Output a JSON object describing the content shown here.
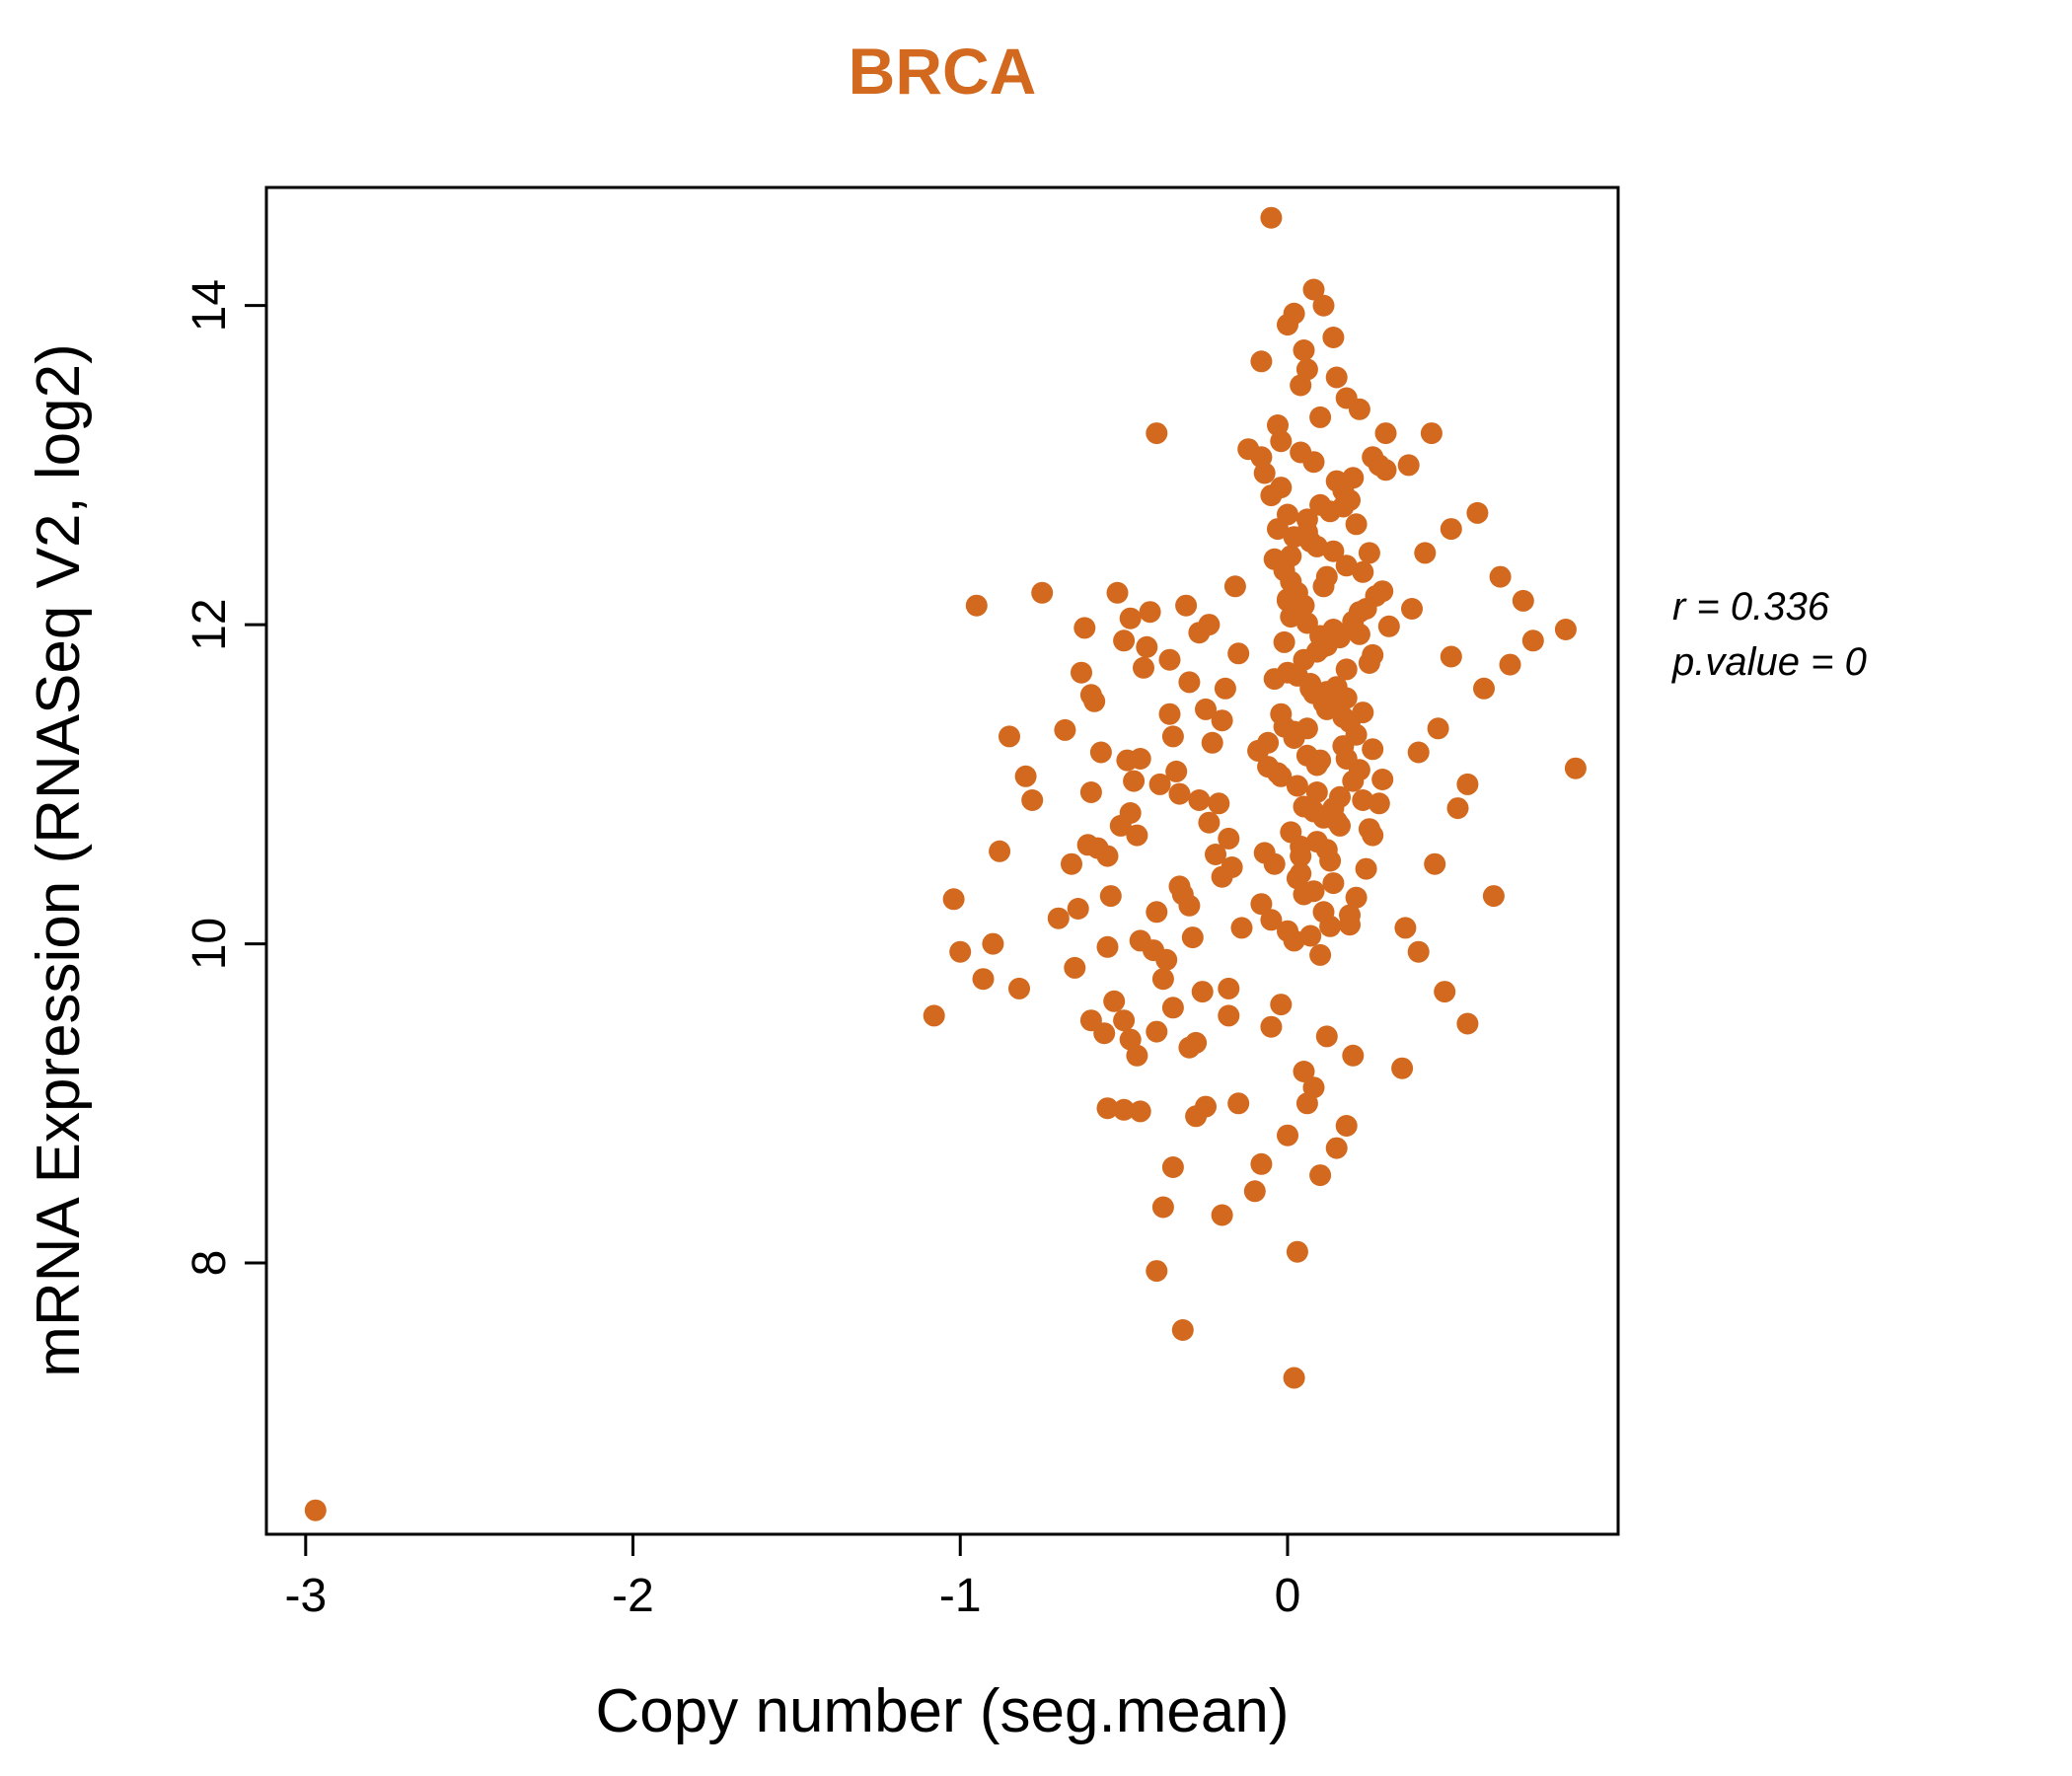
{
  "colors": {
    "accent": "#d2691e",
    "point": "#d2691e",
    "axis": "#000000"
  },
  "chart_data": {
    "type": "scatter",
    "title": "BRCA",
    "xlabel": "Copy number (seg.mean)",
    "ylabel": "mRNA Expression (RNASeq V2, log2)",
    "annotation": {
      "r_label": "r = 0.336",
      "p_label": "p.value = 0"
    },
    "r": 0.336,
    "p_value": 0,
    "x_ticks": [
      -3,
      -2,
      -1,
      0
    ],
    "y_ticks": [
      8,
      10,
      12,
      14
    ],
    "xlim": [
      -3.12,
      1.01
    ],
    "ylim": [
      6.3,
      14.74
    ],
    "grid": false,
    "legend": "none",
    "points": [
      [
        0.02,
        10.02
      ],
      [
        0.08,
        10.33
      ],
      [
        -0.04,
        10.5
      ],
      [
        0.12,
        10.59
      ],
      [
        0.05,
        10.86
      ],
      [
        0.17,
        11.24
      ],
      [
        -0.01,
        11.36
      ],
      [
        0.1,
        11.85
      ],
      [
        0.22,
        12.08
      ],
      [
        0.0,
        12.15
      ],
      [
        0.14,
        12.46
      ],
      [
        0.06,
        12.58
      ],
      [
        -0.07,
        12.95
      ],
      [
        0.19,
        10.18
      ],
      [
        0.03,
        10.41
      ],
      [
        0.25,
        10.72
      ],
      [
        0.09,
        10.95
      ],
      [
        -0.03,
        11.07
      ],
      [
        0.11,
        11.51
      ],
      [
        0.07,
        11.63
      ],
      [
        0.16,
        11.92
      ],
      [
        0.01,
        12.27
      ],
      [
        0.21,
        12.63
      ],
      [
        -0.05,
        12.81
      ],
      [
        0.13,
        10.11
      ],
      [
        0.04,
        10.55
      ],
      [
        0.28,
        10.88
      ],
      [
        0.1,
        11.15
      ],
      [
        -0.02,
        11.44
      ],
      [
        0.18,
        11.72
      ],
      [
        0.06,
        12.01
      ],
      [
        0.23,
        12.33
      ],
      [
        0.0,
        12.69
      ],
      [
        0.15,
        12.9
      ],
      [
        -0.08,
        10.25
      ],
      [
        0.09,
        10.64
      ],
      [
        0.2,
        11.02
      ],
      [
        0.02,
        11.29
      ],
      [
        0.12,
        11.58
      ],
      [
        0.26,
        11.81
      ],
      [
        0.05,
        12.12
      ],
      [
        -0.04,
        12.41
      ],
      [
        0.17,
        12.74
      ],
      [
        0.08,
        13.02
      ],
      [
        0.0,
        10.08
      ],
      [
        0.24,
        10.47
      ],
      [
        0.11,
        10.79
      ],
      [
        -0.06,
        11.11
      ],
      [
        0.19,
        11.39
      ],
      [
        0.03,
        11.68
      ],
      [
        0.14,
        11.97
      ],
      [
        0.29,
        12.21
      ],
      [
        0.07,
        12.52
      ],
      [
        -0.02,
        12.86
      ],
      [
        0.1,
        9.93
      ],
      [
        0.21,
        10.29
      ],
      [
        0.04,
        10.61
      ],
      [
        0.16,
        10.92
      ],
      [
        -0.09,
        11.21
      ],
      [
        0.12,
        11.47
      ],
      [
        0.25,
        11.76
      ],
      [
        0.01,
        12.05
      ],
      [
        0.18,
        12.37
      ],
      [
        0.06,
        12.66
      ],
      [
        0.3,
        12.97
      ],
      [
        -0.05,
        10.15
      ],
      [
        0.13,
        10.52
      ],
      [
        0.08,
        10.83
      ],
      [
        0.22,
        11.09
      ],
      [
        0.02,
        11.33
      ],
      [
        0.15,
        11.61
      ],
      [
        -0.01,
        11.89
      ],
      [
        0.27,
        12.18
      ],
      [
        0.09,
        12.49
      ],
      [
        0.19,
        12.78
      ],
      [
        0.04,
        13.08
      ],
      [
        0.11,
        10.2
      ],
      [
        -0.07,
        10.57
      ],
      [
        0.23,
        10.9
      ],
      [
        0.06,
        11.18
      ],
      [
        0.17,
        11.42
      ],
      [
        0.0,
        11.7
      ],
      [
        0.31,
        11.99
      ],
      [
        0.12,
        12.3
      ],
      [
        -0.03,
        12.6
      ],
      [
        0.2,
        12.92
      ],
      [
        0.07,
        10.05
      ],
      [
        0.14,
        10.38
      ],
      [
        0.26,
        10.68
      ],
      [
        0.03,
        10.99
      ],
      [
        -0.06,
        11.26
      ],
      [
        0.18,
        11.54
      ],
      [
        0.09,
        11.83
      ],
      [
        0.24,
        12.1
      ],
      [
        0.01,
        12.43
      ],
      [
        0.13,
        12.71
      ],
      [
        0.28,
        13.0
      ],
      [
        0.05,
        10.31
      ],
      [
        0.16,
        10.74
      ],
      [
        -0.02,
        11.05
      ],
      [
        0.21,
        11.31
      ],
      [
        0.08,
        11.57
      ],
      [
        0.12,
        11.87
      ],
      [
        0.0,
        12.16
      ],
      [
        0.25,
        12.45
      ],
      [
        0.1,
        12.75
      ],
      [
        -0.08,
        13.05
      ],
      [
        0.19,
        10.12
      ],
      [
        0.04,
        10.44
      ],
      [
        0.15,
        10.77
      ],
      [
        0.29,
        11.03
      ],
      [
        0.06,
        11.35
      ],
      [
        -0.04,
        11.66
      ],
      [
        0.22,
        11.94
      ],
      [
        0.11,
        12.24
      ],
      [
        0.02,
        12.55
      ],
      [
        0.17,
        12.84
      ],
      [
        0.09,
        11.12
      ],
      [
        0.13,
        11.49
      ],
      [
        0.05,
        11.78
      ],
      [
        0.2,
        12.02
      ],
      [
        -0.01,
        12.34
      ],
      [
        0.26,
        11.22
      ],
      [
        0.07,
        11.6
      ],
      [
        0.14,
        10.85
      ],
      [
        0.03,
        12.2
      ],
      [
        0.18,
        11.16
      ],
      [
        0.1,
        11.93
      ],
      [
        0.23,
        11.45
      ],
      [
        0.01,
        10.7
      ],
      [
        -0.45,
        10.02
      ],
      [
        -0.32,
        10.31
      ],
      [
        -0.58,
        10.6
      ],
      [
        -0.21,
        10.88
      ],
      [
        -0.49,
        11.15
      ],
      [
        -0.36,
        11.44
      ],
      [
        -0.63,
        11.7
      ],
      [
        -0.27,
        11.95
      ],
      [
        -0.52,
        12.2
      ],
      [
        -0.4,
        9.45
      ],
      [
        -0.18,
        9.72
      ],
      [
        -0.55,
        9.98
      ],
      [
        -0.3,
        10.24
      ],
      [
        -0.66,
        10.5
      ],
      [
        -0.24,
        10.76
      ],
      [
        -0.47,
        11.02
      ],
      [
        -0.35,
        11.3
      ],
      [
        -0.6,
        11.56
      ],
      [
        -0.15,
        11.82
      ],
      [
        -0.42,
        12.08
      ],
      [
        -0.28,
        9.38
      ],
      [
        -0.53,
        9.64
      ],
      [
        -0.37,
        9.9
      ],
      [
        -0.7,
        10.16
      ],
      [
        -0.2,
        10.42
      ],
      [
        -0.46,
        10.68
      ],
      [
        -0.33,
        10.94
      ],
      [
        -0.57,
        11.2
      ],
      [
        -0.25,
        11.47
      ],
      [
        -0.44,
        11.73
      ],
      [
        -0.62,
        11.98
      ],
      [
        -0.16,
        12.24
      ],
      [
        -0.5,
        9.52
      ],
      [
        -0.38,
        9.78
      ],
      [
        -0.29,
        10.04
      ],
      [
        -0.54,
        10.3
      ],
      [
        -0.22,
        10.56
      ],
      [
        -0.48,
        10.82
      ],
      [
        -0.34,
        11.08
      ],
      [
        -0.68,
        11.34
      ],
      [
        -0.19,
        11.6
      ],
      [
        -0.43,
        11.86
      ],
      [
        -0.31,
        12.12
      ],
      [
        -0.56,
        9.44
      ],
      [
        -0.26,
        9.7
      ],
      [
        -0.41,
        9.96
      ],
      [
        -0.64,
        10.22
      ],
      [
        -0.17,
        10.48
      ],
      [
        -0.51,
        10.74
      ],
      [
        -0.39,
        11.0
      ],
      [
        -0.23,
        11.26
      ],
      [
        -0.59,
        11.52
      ],
      [
        -0.36,
        11.78
      ],
      [
        -0.48,
        12.04
      ],
      [
        -0.14,
        10.1
      ],
      [
        -0.33,
        10.36
      ],
      [
        -0.61,
        10.62
      ],
      [
        -0.27,
        10.9
      ],
      [
        -0.45,
        11.16
      ],
      [
        -0.2,
        11.4
      ],
      [
        -0.55,
        10.55
      ],
      [
        -0.3,
        11.64
      ],
      [
        -0.4,
        10.2
      ],
      [
        -0.65,
        9.85
      ],
      [
        -0.24,
        12.0
      ],
      [
        -0.5,
        11.9
      ],
      [
        -0.35,
        9.6
      ],
      [
        -0.6,
        10.95
      ],
      [
        -0.18,
        10.66
      ],
      [
        -0.46,
        9.3
      ],
      [
        -0.02,
        13.15
      ],
      [
        0.1,
        13.3
      ],
      [
        0.04,
        13.5
      ],
      [
        -0.08,
        13.65
      ],
      [
        0.14,
        13.8
      ],
      [
        0.02,
        13.95
      ],
      [
        0.08,
        14.1
      ],
      [
        -0.03,
        13.25
      ],
      [
        0.18,
        13.42
      ],
      [
        0.06,
        13.6
      ],
      [
        0.0,
        13.88
      ],
      [
        0.11,
        14.0
      ],
      [
        -0.05,
        14.55
      ],
      [
        0.22,
        13.35
      ],
      [
        0.3,
        13.2
      ],
      [
        -0.4,
        13.2
      ],
      [
        0.05,
        13.72
      ],
      [
        0.26,
        13.05
      ],
      [
        -0.12,
        13.1
      ],
      [
        0.15,
        13.55
      ],
      [
        -0.3,
        9.35
      ],
      [
        0.05,
        9.2
      ],
      [
        -0.15,
        9.0
      ],
      [
        0.12,
        9.42
      ],
      [
        -0.45,
        8.95
      ],
      [
        0.0,
        8.8
      ],
      [
        -0.25,
        8.98
      ],
      [
        0.08,
        9.1
      ],
      [
        -0.5,
        8.96
      ],
      [
        -0.35,
        8.6
      ],
      [
        -0.1,
        8.45
      ],
      [
        0.15,
        8.72
      ],
      [
        -0.2,
        8.3
      ],
      [
        0.03,
        8.07
      ],
      [
        -0.4,
        7.95
      ],
      [
        -0.28,
        8.92
      ],
      [
        -0.05,
        9.48
      ],
      [
        0.2,
        9.3
      ],
      [
        -0.55,
        8.97
      ],
      [
        0.1,
        8.55
      ],
      [
        -0.32,
        7.58
      ],
      [
        0.02,
        7.28
      ],
      [
        -0.18,
        9.55
      ],
      [
        -0.48,
        9.4
      ],
      [
        0.06,
        9.0
      ],
      [
        -0.38,
        8.35
      ],
      [
        -0.08,
        8.62
      ],
      [
        0.18,
        8.86
      ],
      [
        -0.6,
        9.52
      ],
      [
        -0.02,
        9.62
      ],
      [
        0.4,
        11.2
      ],
      [
        0.45,
        10.5
      ],
      [
        0.5,
        11.8
      ],
      [
        0.38,
        12.1
      ],
      [
        0.55,
        11.0
      ],
      [
        0.42,
        12.45
      ],
      [
        0.6,
        11.6
      ],
      [
        0.36,
        10.1
      ],
      [
        0.48,
        9.7
      ],
      [
        0.65,
        12.3
      ],
      [
        0.52,
        10.85
      ],
      [
        0.44,
        13.2
      ],
      [
        0.58,
        12.7
      ],
      [
        0.35,
        9.22
      ],
      [
        0.68,
        11.75
      ],
      [
        0.75,
        11.9
      ],
      [
        0.85,
        11.97
      ],
      [
        0.88,
        11.1
      ],
      [
        0.4,
        9.95
      ],
      [
        0.5,
        12.6
      ],
      [
        0.63,
        10.3
      ],
      [
        0.46,
        11.35
      ],
      [
        0.72,
        12.15
      ],
      [
        0.37,
        13.0
      ],
      [
        0.55,
        9.5
      ],
      [
        -0.95,
        12.12
      ],
      [
        -1.08,
        9.55
      ],
      [
        -0.85,
        11.3
      ],
      [
        -0.78,
        10.9
      ],
      [
        -1.0,
        9.95
      ],
      [
        -0.9,
        10.0
      ],
      [
        -0.82,
        9.72
      ],
      [
        -0.75,
        12.2
      ],
      [
        -0.88,
        10.58
      ],
      [
        -1.02,
        10.28
      ],
      [
        -0.8,
        11.05
      ],
      [
        -0.93,
        9.78
      ],
      [
        -2.97,
        6.45
      ]
    ]
  }
}
